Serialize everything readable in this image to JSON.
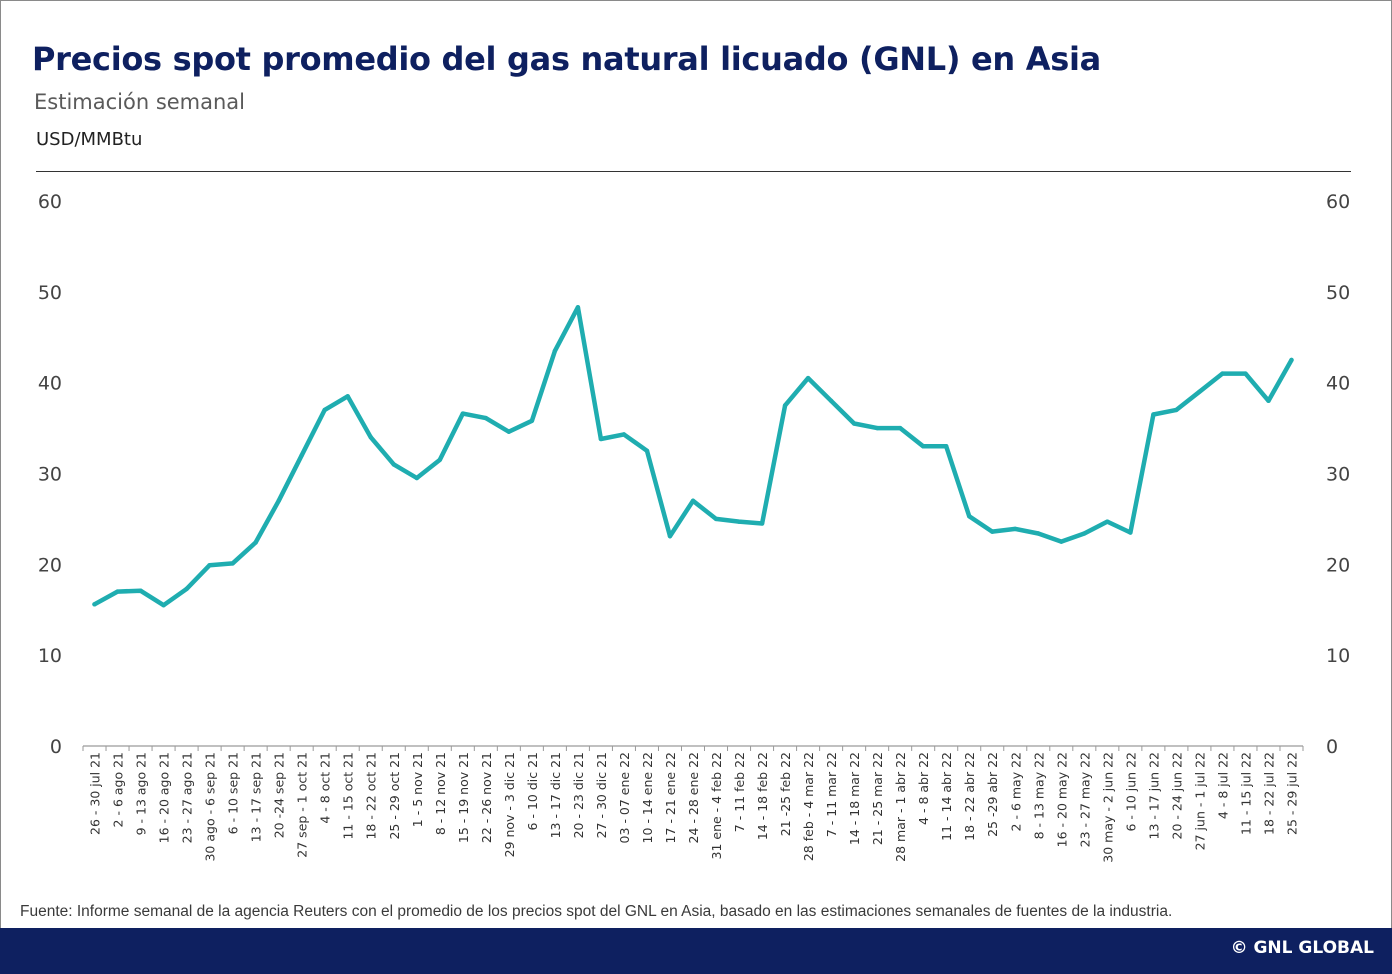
{
  "header": {
    "title": "Precios spot promedio del gas natural licuado (GNL) en Asia",
    "subtitle": "Estimación semanal",
    "unit": "USD/MMBtu"
  },
  "footer": {
    "source": "Fuente: Informe semanal de la agencia Reuters con el promedio de los precios spot del GNL en Asia, basado en las estimaciones semanales de fuentes de la industria.",
    "brand": "© GNL GLOBAL"
  },
  "colors": {
    "title": "#0e2060",
    "line": "#1fadb0",
    "footer_bar": "#0e2060"
  },
  "chart_data": {
    "type": "line",
    "title": "Precios spot promedio del gas natural licuado (GNL) en Asia",
    "subtitle": "Estimación semanal",
    "ylabel": "USD/MMBtu",
    "ylim": [
      0,
      60
    ],
    "yticks": [
      0,
      10,
      20,
      30,
      40,
      50,
      60
    ],
    "y_axis_both_sides": true,
    "grid": false,
    "legend": "none",
    "categories": [
      "26 - 30 jul 21",
      "2 - 6 ago 21",
      "9 - 13 ago 21",
      "16 - 20 ago 21",
      "23 - 27 ago 21",
      "30 ago - 6 sep 21",
      "6 - 10 sep 21",
      "13 - 17 sep 21",
      "20 -24 sep 21",
      "27 sep - 1 oct 21",
      "4 - 8 oct 21",
      "11 - 15 oct 21",
      "18 - 22 oct 21",
      "25 - 29 oct 21",
      "1 - 5 nov 21",
      "8 - 12 nov 21",
      "15 - 19 nov 21",
      "22 - 26 nov 21",
      "29 nov - 3 dic 21",
      "6 - 10 dic 21",
      "13 - 17 dic 21",
      "20 - 23 dic 21",
      "27 - 30 dic 21",
      "03 - 07 ene 22",
      "10 - 14 ene 22",
      "17 - 21 ene 22",
      "24 - 28 ene 22",
      "31 ene - 4 feb 22",
      "7 - 11 feb 22",
      "14 - 18 feb 22",
      "21 -25 feb 22",
      "28 feb - 4 mar 22",
      "7 - 11 mar 22",
      "14 - 18 mar 22",
      "21 - 25 mar 22",
      "28 mar - 1 abr 22",
      "4 - 8 abr 22",
      "11 - 14 abr 22",
      "18 - 22 abr 22",
      "25 -29 abr 22",
      "2 - 6 may 22",
      "8 - 13 may 22",
      "16 - 20 may 22",
      "23 - 27 may 22",
      "30 may - 2 jun 22",
      "6 - 10 jun 22",
      "13 - 17 jun 22",
      "20 - 24 jun 22",
      "27 jun - 1 jul 22",
      "4 - 8 jul 22",
      "11 - 15 jul 22",
      "18 - 22 jul 22",
      "25 - 29 jul 22"
    ],
    "series": [
      {
        "values": [
          15.6,
          17.0,
          17.1,
          15.5,
          17.3,
          19.9,
          20.1,
          22.4,
          27.0,
          32.0,
          37.0,
          38.5,
          34.0,
          31.0,
          29.5,
          31.5,
          36.6,
          36.1,
          34.6,
          35.8,
          43.5,
          48.3,
          33.8,
          34.3,
          32.5,
          23.1,
          27.0,
          25.0,
          24.7,
          24.5,
          37.5,
          40.5,
          38.0,
          35.5,
          35.0,
          35.0,
          33.0,
          33.0,
          25.3,
          23.6,
          23.9,
          23.4,
          22.5,
          23.4,
          24.7,
          23.5,
          36.5,
          37.0,
          39.0,
          41.0,
          41.0,
          38.0,
          42.5
        ]
      }
    ]
  }
}
